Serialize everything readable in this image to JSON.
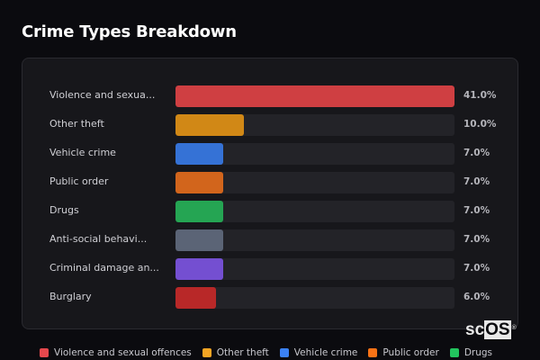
{
  "header": {
    "title": "Crime Types Breakdown"
  },
  "chart_data": {
    "type": "bar",
    "orientation": "horizontal",
    "title": "Crime Types Breakdown",
    "xlabel": "",
    "ylabel": "",
    "xlim": [
      0,
      41
    ],
    "grid": false,
    "legend_position": "bottom",
    "categories": [
      "Violence and sexual offences",
      "Other theft",
      "Vehicle crime",
      "Public order",
      "Drugs",
      "Anti-social behaviour",
      "Criminal damage and arson",
      "Burglary"
    ],
    "display_labels": [
      "Violence and sexua...",
      "Other theft",
      "Vehicle crime",
      "Public order",
      "Drugs",
      "Anti-social behavi...",
      "Criminal damage an...",
      "Burglary"
    ],
    "values": [
      41.0,
      10.0,
      7.0,
      7.0,
      7.0,
      7.0,
      7.0,
      6.0
    ],
    "value_labels": [
      "41.0%",
      "10.0%",
      "7.0%",
      "7.0%",
      "7.0%",
      "7.0%",
      "7.0%",
      "6.0%"
    ],
    "colors": [
      "#cf3f42",
      "#d18816",
      "#3572d6",
      "#d2651c",
      "#25a553",
      "#5b6476",
      "#744fd1",
      "#b82828"
    ],
    "legend": [
      {
        "label": "Violence and sexual offences",
        "color": "#e5484d"
      },
      {
        "label": "Other theft",
        "color": "#f5a524"
      },
      {
        "label": "Vehicle crime",
        "color": "#3b82f6"
      },
      {
        "label": "Public order",
        "color": "#f97316"
      },
      {
        "label": "Drugs",
        "color": "#22c55e"
      }
    ]
  },
  "branding": {
    "logo_sc": "sc",
    "logo_os": "OS",
    "logo_mark": "®"
  }
}
